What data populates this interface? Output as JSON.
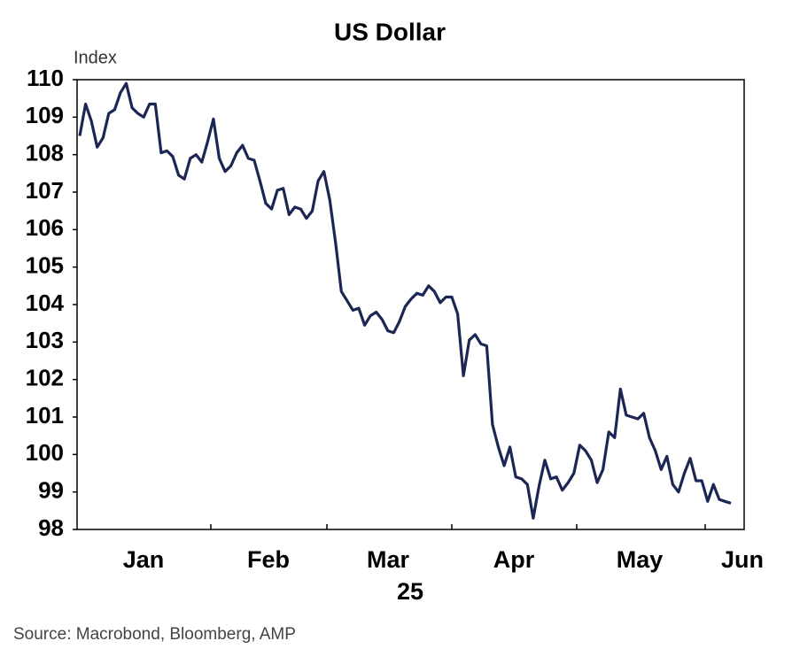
{
  "chart_data": {
    "type": "line",
    "title": "US Dollar",
    "y_label": "Index",
    "month_labels": [
      "Jan",
      "Feb",
      "Mar",
      "Apr",
      "May",
      "Jun"
    ],
    "year_label": "25",
    "source": "Source: Macrobond, Bloomberg, AMP",
    "color": "#1c2654",
    "ylim": [
      98,
      110
    ],
    "yticks": [
      98,
      99,
      100,
      101,
      102,
      103,
      104,
      105,
      106,
      107,
      108,
      109,
      110
    ],
    "values": [
      108.5,
      109.35,
      108.9,
      108.2,
      108.45,
      109.1,
      109.2,
      109.65,
      109.9,
      109.25,
      109.1,
      109.0,
      109.35,
      109.35,
      108.05,
      108.1,
      107.95,
      107.45,
      107.35,
      107.9,
      108.0,
      107.8,
      108.35,
      108.95,
      107.9,
      107.55,
      107.7,
      108.05,
      108.25,
      107.9,
      107.85,
      107.3,
      106.7,
      106.55,
      107.05,
      107.1,
      106.4,
      106.6,
      106.55,
      106.3,
      106.5,
      107.3,
      107.55,
      106.8,
      105.65,
      104.35,
      104.1,
      103.85,
      103.9,
      103.45,
      103.7,
      103.8,
      103.6,
      103.3,
      103.25,
      103.55,
      103.95,
      104.15,
      104.3,
      104.25,
      104.5,
      104.35,
      104.05,
      104.2,
      104.2,
      103.75,
      102.1,
      103.05,
      103.2,
      102.95,
      102.9,
      100.8,
      100.2,
      99.7,
      100.2,
      99.4,
      99.35,
      99.2,
      98.3,
      99.15,
      99.85,
      99.35,
      99.4,
      99.05,
      99.25,
      99.5,
      100.25,
      100.1,
      99.85,
      99.25,
      99.6,
      100.6,
      100.45,
      101.75,
      101.05,
      101.0,
      100.95,
      101.1,
      100.45,
      100.1,
      99.6,
      99.95,
      99.2,
      99.0,
      99.5,
      99.9,
      99.3,
      99.3,
      98.75,
      99.2,
      98.8,
      98.75,
      98.7
    ]
  }
}
